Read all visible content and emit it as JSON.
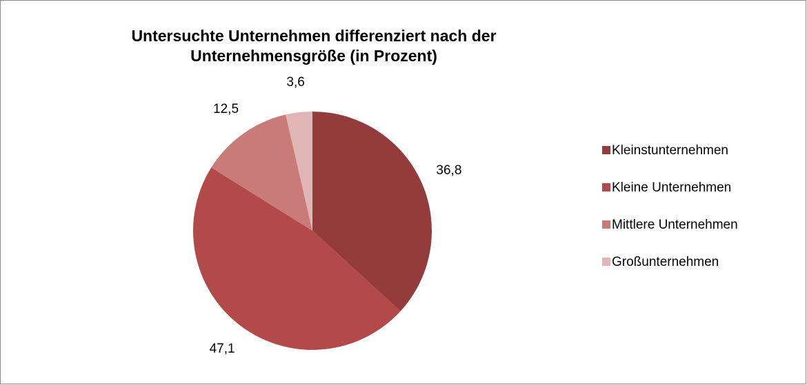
{
  "chart_data": {
    "type": "pie",
    "title": "Untersuchte Unternehmen differenziert nach der Unternehmensgröße (in Prozent)",
    "categories": [
      "Kleinstunternehmen",
      "Kleine Unternehmen",
      "Mittlere Unternehmen",
      "Großunternehmen"
    ],
    "values": [
      36.8,
      47.1,
      12.5,
      3.6
    ],
    "value_labels": [
      "36,8",
      "47,1",
      "12,5",
      "3,6"
    ],
    "colors": [
      "#943c3c",
      "#b14a48",
      "#c97b79",
      "#dfb5b5"
    ],
    "legend": "right"
  }
}
